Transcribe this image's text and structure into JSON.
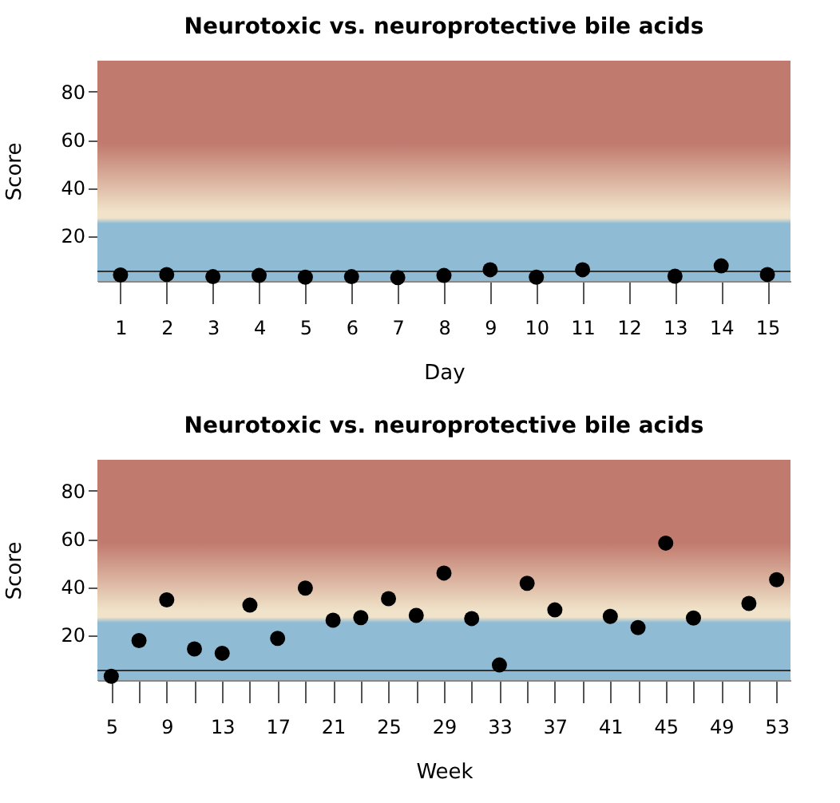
{
  "chart_data": [
    {
      "type": "scatter",
      "title": "Neurotoxic vs. neuroprotective bile acids",
      "xlabel": "Day",
      "ylabel": "Score",
      "x": [
        1,
        2,
        3,
        4,
        5,
        6,
        7,
        8,
        9,
        10,
        11,
        13,
        14,
        15
      ],
      "series": [
        {
          "color": "#000000",
          "values": [
            3.5,
            3.7,
            2.8,
            3.3,
            2.6,
            2.8,
            2.4,
            3.3,
            5.7,
            2.6,
            5.7,
            3,
            7.3,
            3.7
          ]
        }
      ],
      "xlim": [
        0.5,
        15.5
      ],
      "ylim": [
        1,
        93
      ],
      "xticks": [
        1,
        2,
        3,
        4,
        5,
        6,
        7,
        8,
        9,
        10,
        11,
        12,
        13,
        14,
        15
      ],
      "yticks": [
        20,
        40,
        60,
        80
      ],
      "ref_lines": [
        {
          "axis": "y",
          "value": 5,
          "color": "#333333"
        }
      ],
      "bands": [
        {
          "axis": "y",
          "from": 1,
          "to": 25,
          "color": "#8fbcd4"
        },
        {
          "axis": "y",
          "from": 25,
          "to": 30,
          "color": "#f0e3c9"
        },
        {
          "axis": "y",
          "from": 30,
          "to": 93,
          "color": "#c17a6e"
        }
      ],
      "marker": "circle",
      "grid": false
    },
    {
      "type": "scatter",
      "title": "Neurotoxic vs. neuroprotective bile acids",
      "xlabel": "Week",
      "ylabel": "Score",
      "x": [
        5,
        7,
        9,
        11,
        13,
        15,
        17,
        19,
        21,
        23,
        25,
        27,
        29,
        31,
        33,
        35,
        37,
        41,
        43,
        45,
        47,
        51,
        53
      ],
      "series": [
        {
          "color": "#000000",
          "values": [
            2.6,
            17.5,
            34.5,
            14,
            12.2,
            32.3,
            18.4,
            39.4,
            26,
            27.1,
            35,
            28,
            45.7,
            26.7,
            7.3,
            41.4,
            30.3,
            27.6,
            22.9,
            58.2,
            26.9,
            33,
            42.9
          ]
        }
      ],
      "xlim": [
        4,
        54
      ],
      "ylim": [
        1,
        93
      ],
      "xticks": [
        5,
        {
          "value": 7,
          "label": null
        },
        9,
        {
          "value": 11,
          "label": null
        },
        13,
        {
          "value": 15,
          "label": null
        },
        17,
        {
          "value": 19,
          "label": null
        },
        21,
        {
          "value": 23,
          "label": null
        },
        25,
        {
          "value": 27,
          "label": null
        },
        29,
        {
          "value": 31,
          "label": null
        },
        33,
        {
          "value": 35,
          "label": null
        },
        37,
        {
          "value": 39,
          "label": null
        },
        41,
        {
          "value": 43,
          "label": null
        },
        45,
        {
          "value": 47,
          "label": null
        },
        49,
        {
          "value": 51,
          "label": null
        },
        53
      ],
      "yticks": [
        20,
        40,
        60,
        80
      ],
      "ref_lines": [
        {
          "axis": "y",
          "value": 5,
          "color": "#333333"
        }
      ],
      "bands": [
        {
          "axis": "y",
          "from": 1,
          "to": 25,
          "color": "#8fbcd4"
        },
        {
          "axis": "y",
          "from": 25,
          "to": 30,
          "color": "#f0e3c9"
        },
        {
          "axis": "y",
          "from": 30,
          "to": 93,
          "color": "#c17a6e"
        }
      ],
      "marker": "circle",
      "grid": false
    }
  ]
}
